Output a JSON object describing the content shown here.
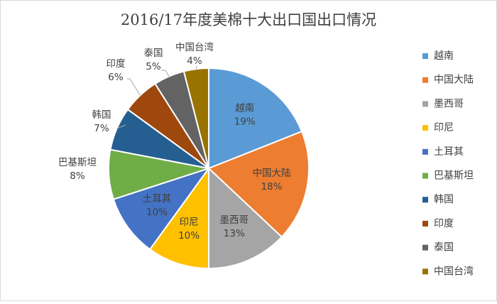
{
  "chart_data": {
    "type": "pie",
    "title": "2016/17年度美棉十大出口国出口情况",
    "categories": [
      "越南",
      "中国大陆",
      "墨西哥",
      "印尼",
      "土耳其",
      "巴基斯坦",
      "韩国",
      "印度",
      "泰国",
      "中国台湾"
    ],
    "values": [
      19,
      18,
      13,
      10,
      10,
      8,
      7,
      6,
      5,
      4
    ],
    "value_labels": [
      "19%",
      "18%",
      "13%",
      "10%",
      "10%",
      "8%",
      "7%",
      "6%",
      "5%",
      "4%"
    ],
    "colors": [
      "#5b9bd5",
      "#ed7d31",
      "#a5a5a5",
      "#ffc000",
      "#4472c4",
      "#70ad47",
      "#255e91",
      "#9e480e",
      "#636363",
      "#997300"
    ],
    "label_colors": [
      "#404040",
      "#404040",
      "#404040",
      "#404040",
      "#404040",
      "#404040",
      "#404040",
      "#404040",
      "#404040",
      "#404040"
    ],
    "legend_position": "right"
  }
}
